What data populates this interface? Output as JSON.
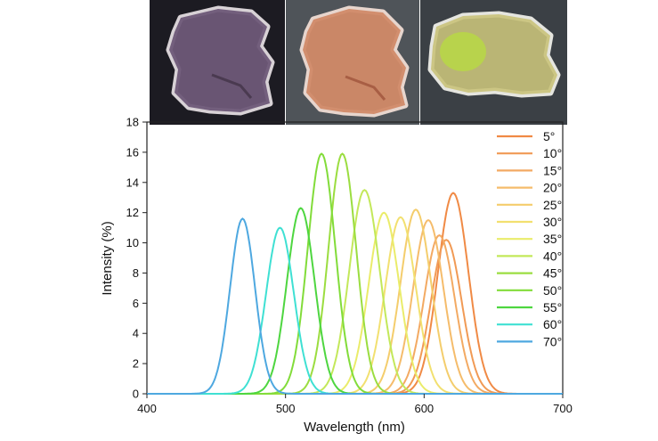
{
  "photos": [
    {
      "name": "photo-dark-sample",
      "background": "#1c1b22",
      "sample_color": "#6e5878"
    },
    {
      "name": "photo-orange-sample",
      "background": "#4f5459",
      "sample_color": "#d18a68"
    },
    {
      "name": "photo-green-sample",
      "background": "#3b4045",
      "sample_color": "#c9c27a"
    }
  ],
  "chart_data": {
    "type": "line",
    "xlabel": "Wavelength (nm)",
    "ylabel": "Intensity (%)",
    "xlim": [
      400,
      700
    ],
    "ylim": [
      0,
      18
    ],
    "xticks": [
      "400",
      "500",
      "600",
      "700"
    ],
    "yticks": [
      "0",
      "2",
      "4",
      "6",
      "8",
      "10",
      "12",
      "14",
      "16",
      "18"
    ],
    "legend_position": "right",
    "grid": false,
    "series": [
      {
        "name": "5°",
        "peak": 621,
        "height": 13.3,
        "width": 11,
        "color": "#f08a45"
      },
      {
        "name": "10°",
        "peak": 616,
        "height": 10.2,
        "width": 11,
        "color": "#f19a55"
      },
      {
        "name": "15°",
        "peak": 611,
        "height": 10.5,
        "width": 11,
        "color": "#f3aa63"
      },
      {
        "name": "20°",
        "peak": 603,
        "height": 11.5,
        "width": 11,
        "color": "#f5bc6b"
      },
      {
        "name": "25°",
        "peak": 594,
        "height": 12.2,
        "width": 11,
        "color": "#f4cd6c"
      },
      {
        "name": "30°",
        "peak": 583,
        "height": 11.7,
        "width": 11,
        "color": "#f2e070"
      },
      {
        "name": "35°",
        "peak": 571,
        "height": 12.0,
        "width": 11,
        "color": "#eaec6a"
      },
      {
        "name": "40°",
        "peak": 557,
        "height": 13.5,
        "width": 11,
        "color": "#c3e85a"
      },
      {
        "name": "45°",
        "peak": 541,
        "height": 15.9,
        "width": 10,
        "color": "#9bdd40"
      },
      {
        "name": "50°",
        "peak": 526,
        "height": 15.9,
        "width": 10,
        "color": "#82dc3a"
      },
      {
        "name": "55°",
        "peak": 511,
        "height": 12.3,
        "width": 10,
        "color": "#4ed640"
      },
      {
        "name": "60°",
        "peak": 496,
        "height": 11.0,
        "width": 10,
        "color": "#3fe0d3"
      },
      {
        "name": "70°",
        "peak": 469,
        "height": 11.6,
        "width": 9,
        "color": "#4ea8e0"
      }
    ]
  }
}
